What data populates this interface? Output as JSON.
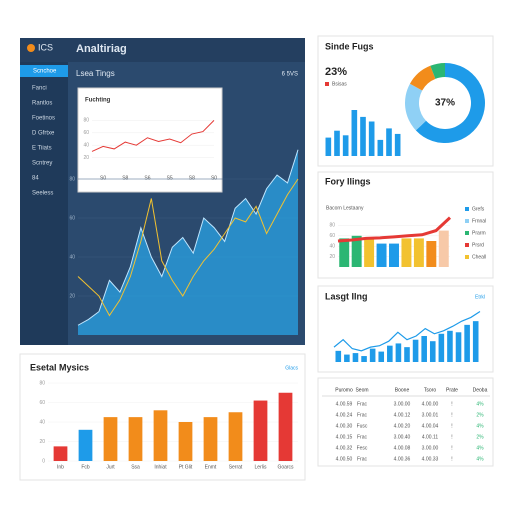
{
  "header": {
    "logo": "ICS",
    "title": "Analtiriag",
    "subtitle": "Lsea Tings",
    "subtitle_meta": "6 5VS"
  },
  "sidebar": {
    "active": "Scnchoe",
    "items": [
      "Fanci",
      "Rantlos",
      "Foetinos",
      "D Gfrtxe",
      "E Tiiats",
      "Scntrey",
      "84",
      "Seeless"
    ]
  },
  "chart_data": [
    {
      "type": "line",
      "title": "Fuchting",
      "color": "#e53935",
      "categories": [
        null,
        "S0",
        null,
        "S8",
        null,
        "S6",
        null,
        "S5",
        null,
        "S8",
        null,
        "S0"
      ],
      "values": [
        30,
        38,
        34,
        45,
        40,
        52,
        46,
        50,
        44,
        58,
        62,
        80
      ],
      "ylim": [
        0,
        100
      ],
      "yticks": [
        20,
        40,
        60,
        80
      ]
    },
    {
      "type": "area",
      "series": [
        {
          "color": "#29a3e6",
          "values": [
            5,
            8,
            12,
            28,
            22,
            35,
            55,
            40,
            30,
            45,
            50,
            42,
            60,
            55,
            48,
            65,
            70,
            62,
            75,
            82,
            78,
            95
          ]
        },
        {
          "color": "#f2c230",
          "values": [
            30,
            25,
            20,
            10,
            18,
            30,
            48,
            70,
            38,
            28,
            20,
            30,
            38,
            44,
            52,
            60,
            58,
            66,
            52,
            62,
            72,
            80
          ]
        }
      ],
      "ylim": [
        0,
        100
      ],
      "yticks": [
        20,
        40,
        60,
        80
      ]
    },
    {
      "type": "bar",
      "title": "Sinde Fugs",
      "kpi": "23%",
      "legend": "Bsisas",
      "color": "#1e9be9",
      "values": [
        40,
        55,
        45,
        100,
        85,
        75,
        35,
        60,
        48
      ],
      "ylim": [
        0,
        100
      ]
    },
    {
      "type": "donut",
      "center_label": "37%",
      "values": [
        63,
        20,
        11,
        6
      ],
      "colors": [
        "#1e9be9",
        "#8fd0f5",
        "#f28c1b",
        "#2bb673"
      ]
    },
    {
      "type": "bar",
      "title": "Fory Ilings",
      "subtitle": "Bacorn Lestaany",
      "values": [
        55,
        60,
        55,
        45,
        45,
        55,
        55,
        50,
        70
      ],
      "colors": [
        "#2bb673",
        "#2bb673",
        "#f2c230",
        "#1e9be9",
        "#1e9be9",
        "#f2c230",
        "#f2c230",
        "#f28c1b",
        "#f7c9a8"
      ],
      "line": {
        "color": "#e53935",
        "values": [
          50,
          52,
          55,
          56,
          58,
          60,
          62,
          70,
          95
        ]
      },
      "ylim": [
        0,
        100
      ],
      "yticks": [
        20,
        40,
        60,
        80
      ],
      "legend": [
        {
          "name": "Grefs",
          "color": "#1e9be9"
        },
        {
          "name": "Frnnal",
          "color": "#8fd0f5"
        },
        {
          "name": "Prarm",
          "color": "#2bb673"
        },
        {
          "name": "Prsrd",
          "color": "#e53935"
        },
        {
          "name": "Cheall",
          "color": "#f2c230"
        }
      ]
    },
    {
      "type": "bar",
      "title": "Lasgt Ilng",
      "action": "Etrkl",
      "color": "#1e9be9",
      "values": [
        15,
        10,
        12,
        8,
        18,
        14,
        22,
        25,
        20,
        30,
        35,
        28,
        38,
        42,
        40,
        50,
        55
      ],
      "line": {
        "color": "#1e9be9",
        "values": [
          20,
          30,
          18,
          15,
          20,
          22,
          28,
          40,
          30,
          35,
          45,
          38,
          42,
          48,
          55,
          60,
          68
        ]
      },
      "ylim": [
        0,
        70
      ]
    },
    {
      "type": "bar",
      "title": "Esetal Mysics",
      "action": "Glacs",
      "categories": [
        "Inb",
        "Fcb",
        "Jurt",
        "Ssa",
        "Inhiat",
        "Pt Glit",
        "Enmt",
        "Serrat",
        "Lerlis",
        "Goarcs"
      ],
      "values": [
        15,
        32,
        45,
        45,
        52,
        40,
        45,
        50,
        62,
        70
      ],
      "colors": [
        "#e53935",
        "#1e9be9",
        "#f28c1b",
        "#f28c1b",
        "#f28c1b",
        "#f28c1b",
        "#f28c1b",
        "#f28c1b",
        "#e53935",
        "#e53935"
      ],
      "ylim": [
        0,
        80
      ],
      "yticks": [
        0,
        20,
        40,
        60,
        80
      ]
    }
  ],
  "table": {
    "header": [
      "Puromo",
      "Seom",
      "Boone",
      "Tsoro",
      "Prate",
      "Deoba"
    ],
    "rows": [
      [
        "4.00.59",
        "Frac",
        "3.00.00",
        "4.00.00",
        "!",
        "4%"
      ],
      [
        "4.00.24",
        "Frac",
        "4.00.12",
        "3.00.01",
        "!",
        "2%"
      ],
      [
        "4.00.30",
        "Fusc",
        "4.00.20",
        "4.00.04",
        "!",
        "4%"
      ],
      [
        "4.00.15",
        "Frac",
        "3.00.40",
        "4.00.11",
        "!",
        "2%"
      ],
      [
        "4.00.32",
        "Fesc",
        "4.00.08",
        "3.00.00",
        "!",
        "4%"
      ],
      [
        "4.00.50",
        "Frac",
        "4.00.36",
        "4.00.33",
        "!",
        "4%"
      ]
    ]
  }
}
